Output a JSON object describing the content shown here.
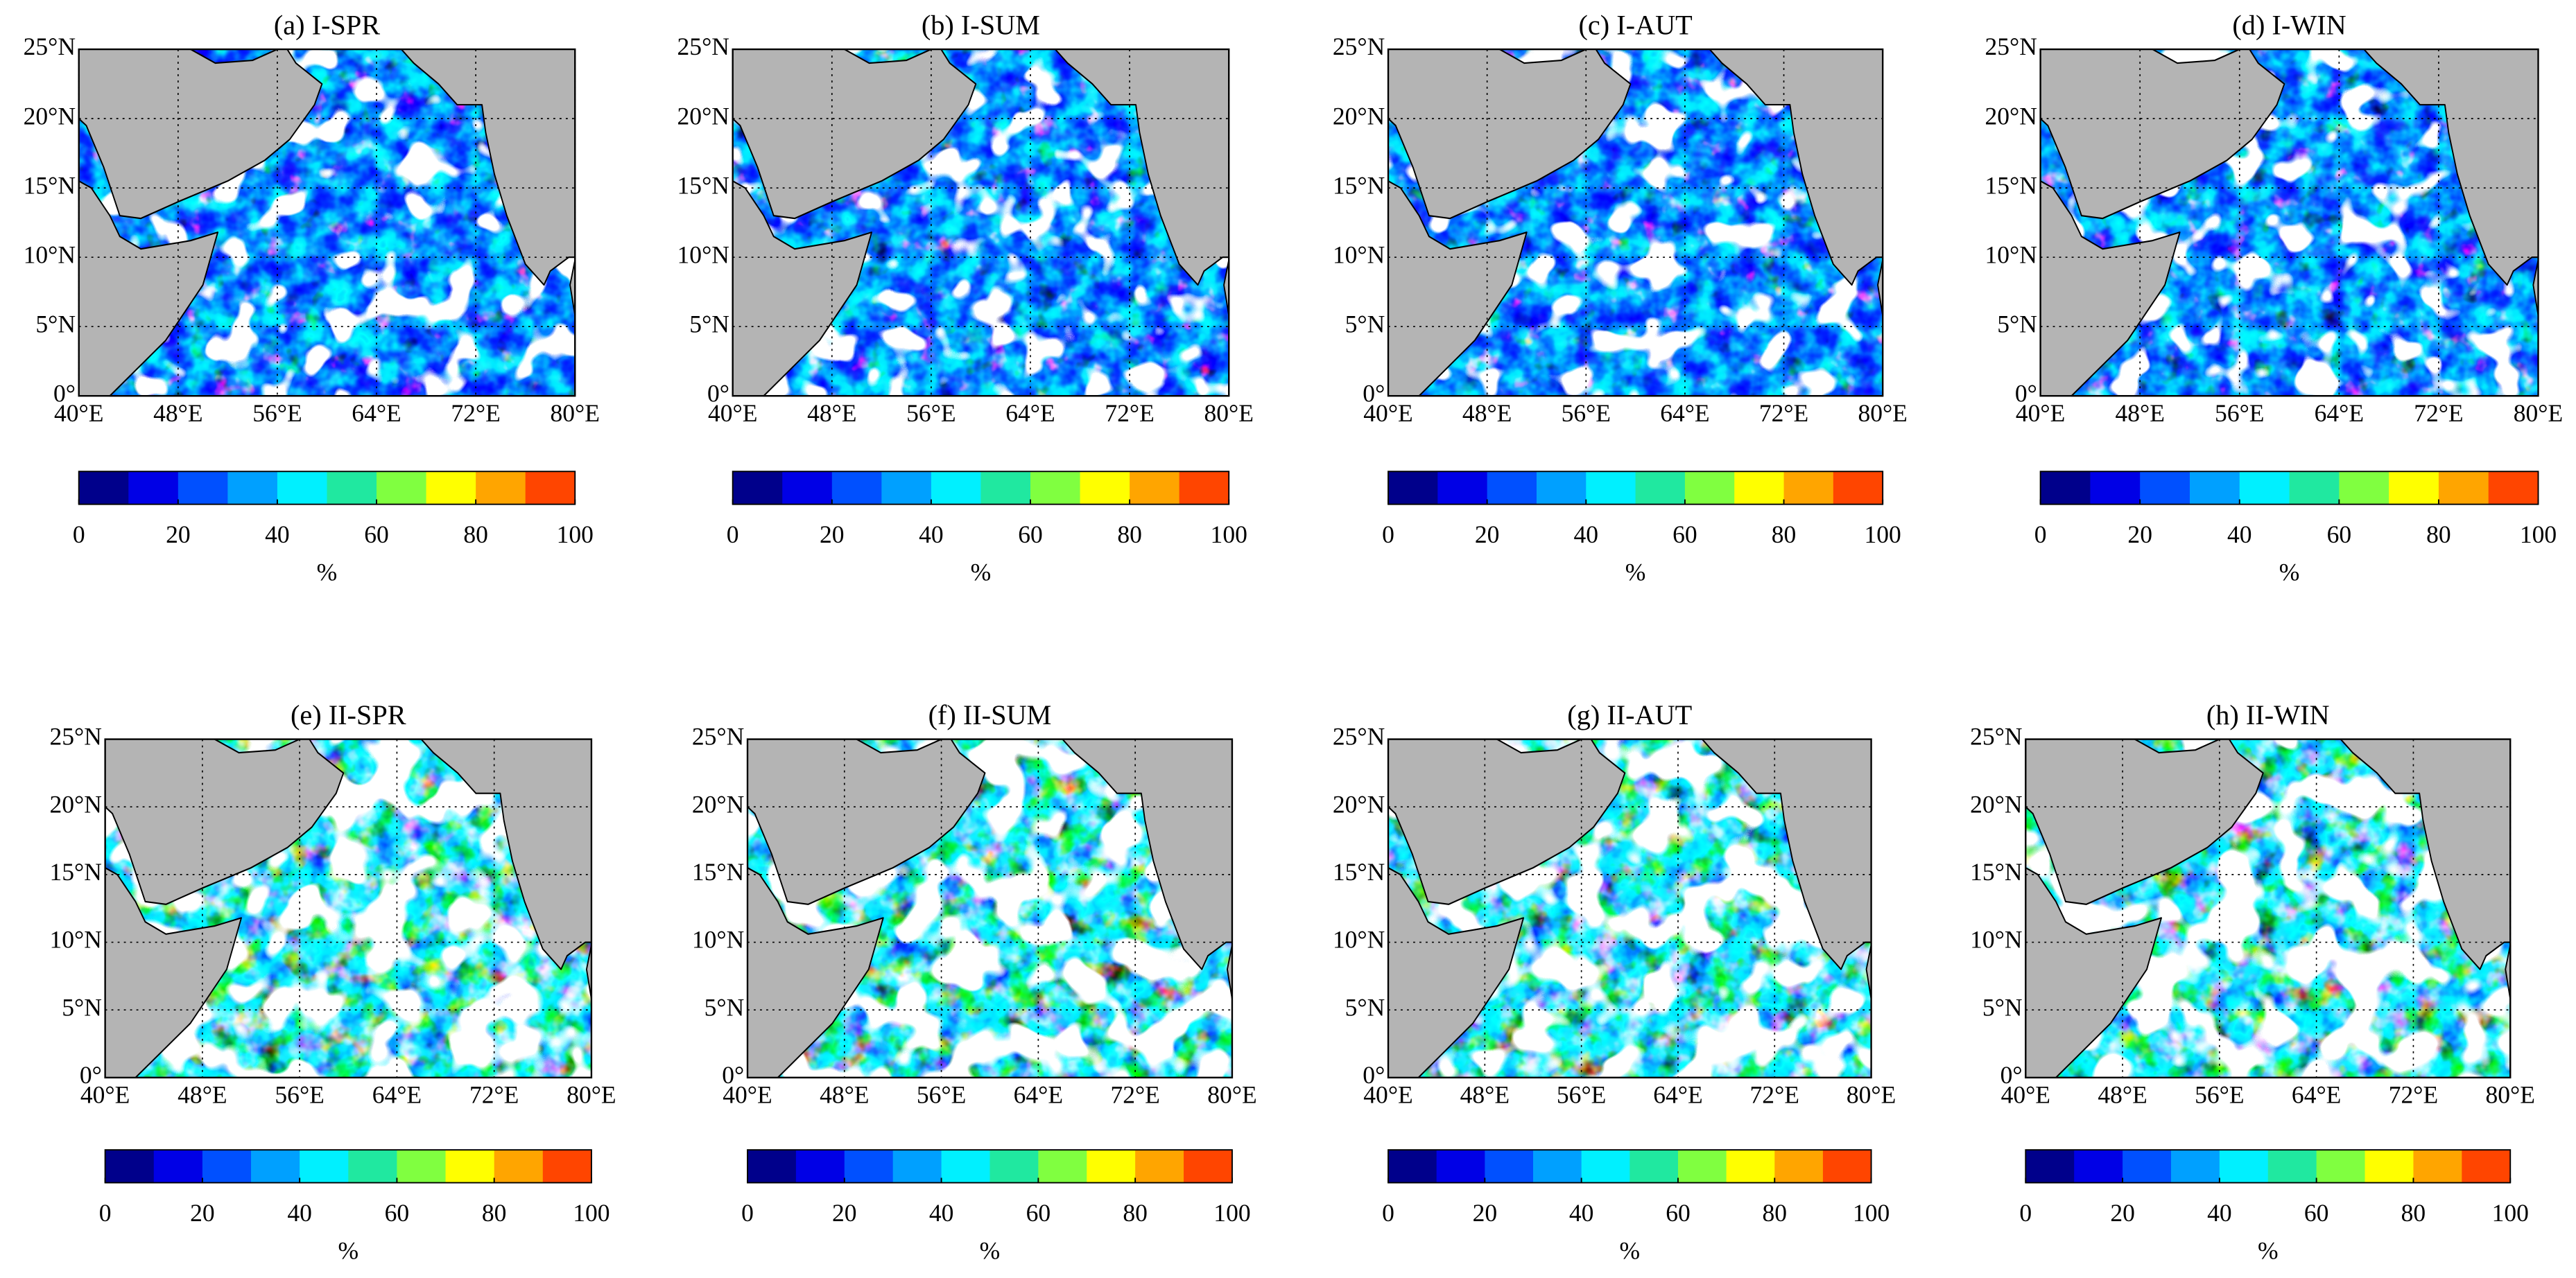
{
  "chart_data": [
    {
      "type": "map",
      "title": "(a) I-SPR",
      "xlim": [
        40,
        80
      ],
      "ylim": [
        0,
        25
      ],
      "xticks": [
        {
          "value": 40,
          "label": "40°E"
        },
        {
          "value": 48,
          "label": "48°E"
        },
        {
          "value": 56,
          "label": "56°E"
        },
        {
          "value": 64,
          "label": "64°E"
        },
        {
          "value": 72,
          "label": "72°E"
        },
        {
          "value": 80,
          "label": "80°E"
        }
      ],
      "yticks": [
        {
          "value": 0,
          "label": "0°"
        },
        {
          "value": 5,
          "label": "5°N"
        },
        {
          "value": 10,
          "label": "10°N"
        },
        {
          "value": 15,
          "label": "15°N"
        },
        {
          "value": 20,
          "label": "20°N"
        },
        {
          "value": 25,
          "label": "25°N"
        }
      ],
      "grid": true,
      "colorbar": {
        "lim": [
          0,
          100
        ],
        "ticks": [
          0,
          20,
          40,
          60,
          80,
          100
        ],
        "colors": [
          "#00008b",
          "#0000e6",
          "#0050ff",
          "#00a0ff",
          "#00f0ff",
          "#20e8a0",
          "#80ff40",
          "#ffff00",
          "#ffa500",
          "#ff4500"
        ],
        "label": "%"
      }
    },
    {
      "type": "map",
      "title": "(b) I-SUM",
      "xlim": [
        40,
        80
      ],
      "ylim": [
        0,
        25
      ],
      "xticks": [
        {
          "value": 40,
          "label": "40°E"
        },
        {
          "value": 48,
          "label": "48°E"
        },
        {
          "value": 56,
          "label": "56°E"
        },
        {
          "value": 64,
          "label": "64°E"
        },
        {
          "value": 72,
          "label": "72°E"
        },
        {
          "value": 80,
          "label": "80°E"
        }
      ],
      "yticks": [
        {
          "value": 0,
          "label": "0°"
        },
        {
          "value": 5,
          "label": "5°N"
        },
        {
          "value": 10,
          "label": "10°N"
        },
        {
          "value": 15,
          "label": "15°N"
        },
        {
          "value": 20,
          "label": "20°N"
        },
        {
          "value": 25,
          "label": "25°N"
        }
      ],
      "grid": true,
      "colorbar": {
        "lim": [
          0,
          100
        ],
        "ticks": [
          0,
          20,
          40,
          60,
          80,
          100
        ],
        "colors": [
          "#00008b",
          "#0000e6",
          "#0050ff",
          "#00a0ff",
          "#00f0ff",
          "#20e8a0",
          "#80ff40",
          "#ffff00",
          "#ffa500",
          "#ff4500"
        ],
        "label": "%"
      }
    },
    {
      "type": "map",
      "title": "(c) I-AUT",
      "xlim": [
        40,
        80
      ],
      "ylim": [
        0,
        25
      ],
      "xticks": [
        {
          "value": 40,
          "label": "40°E"
        },
        {
          "value": 48,
          "label": "48°E"
        },
        {
          "value": 56,
          "label": "56°E"
        },
        {
          "value": 64,
          "label": "64°E"
        },
        {
          "value": 72,
          "label": "72°E"
        },
        {
          "value": 80,
          "label": "80°E"
        }
      ],
      "yticks": [
        {
          "value": 0,
          "label": "0°"
        },
        {
          "value": 5,
          "label": "5°N"
        },
        {
          "value": 10,
          "label": "10°N"
        },
        {
          "value": 15,
          "label": "15°N"
        },
        {
          "value": 20,
          "label": "20°N"
        },
        {
          "value": 25,
          "label": "25°N"
        }
      ],
      "grid": true,
      "colorbar": {
        "lim": [
          0,
          100
        ],
        "ticks": [
          0,
          20,
          40,
          60,
          80,
          100
        ],
        "colors": [
          "#00008b",
          "#0000e6",
          "#0050ff",
          "#00a0ff",
          "#00f0ff",
          "#20e8a0",
          "#80ff40",
          "#ffff00",
          "#ffa500",
          "#ff4500"
        ],
        "label": "%"
      }
    },
    {
      "type": "map",
      "title": "(d) I-WIN",
      "xlim": [
        40,
        80
      ],
      "ylim": [
        0,
        25
      ],
      "xticks": [
        {
          "value": 40,
          "label": "40°E"
        },
        {
          "value": 48,
          "label": "48°E"
        },
        {
          "value": 56,
          "label": "56°E"
        },
        {
          "value": 64,
          "label": "64°E"
        },
        {
          "value": 72,
          "label": "72°E"
        },
        {
          "value": 80,
          "label": "80°E"
        }
      ],
      "yticks": [
        {
          "value": 0,
          "label": "0°"
        },
        {
          "value": 5,
          "label": "5°N"
        },
        {
          "value": 10,
          "label": "10°N"
        },
        {
          "value": 15,
          "label": "15°N"
        },
        {
          "value": 20,
          "label": "20°N"
        },
        {
          "value": 25,
          "label": "25°N"
        }
      ],
      "grid": true,
      "colorbar": {
        "lim": [
          0,
          100
        ],
        "ticks": [
          0,
          20,
          40,
          60,
          80,
          100
        ],
        "colors": [
          "#00008b",
          "#0000e6",
          "#0050ff",
          "#00a0ff",
          "#00f0ff",
          "#20e8a0",
          "#80ff40",
          "#ffff00",
          "#ffa500",
          "#ff4500"
        ],
        "label": "%"
      }
    },
    {
      "type": "map",
      "title": "(e) II-SPR",
      "xlim": [
        40,
        80
      ],
      "ylim": [
        0,
        25
      ],
      "xticks": [
        {
          "value": 40,
          "label": "40°E"
        },
        {
          "value": 48,
          "label": "48°E"
        },
        {
          "value": 56,
          "label": "56°E"
        },
        {
          "value": 64,
          "label": "64°E"
        },
        {
          "value": 72,
          "label": "72°E"
        },
        {
          "value": 80,
          "label": "80°E"
        }
      ],
      "yticks": [
        {
          "value": 0,
          "label": "0°"
        },
        {
          "value": 5,
          "label": "5°N"
        },
        {
          "value": 10,
          "label": "10°N"
        },
        {
          "value": 15,
          "label": "15°N"
        },
        {
          "value": 20,
          "label": "20°N"
        },
        {
          "value": 25,
          "label": "25°N"
        }
      ],
      "grid": true,
      "colorbar": {
        "lim": [
          0,
          100
        ],
        "ticks": [
          0,
          20,
          40,
          60,
          80,
          100
        ],
        "colors": [
          "#00008b",
          "#0000e6",
          "#0050ff",
          "#00a0ff",
          "#00f0ff",
          "#20e8a0",
          "#80ff40",
          "#ffff00",
          "#ffa500",
          "#ff4500"
        ],
        "label": "%"
      }
    },
    {
      "type": "map",
      "title": "(f) II-SUM",
      "xlim": [
        40,
        80
      ],
      "ylim": [
        0,
        25
      ],
      "xticks": [
        {
          "value": 40,
          "label": "40°E"
        },
        {
          "value": 48,
          "label": "48°E"
        },
        {
          "value": 56,
          "label": "56°E"
        },
        {
          "value": 64,
          "label": "64°E"
        },
        {
          "value": 72,
          "label": "72°E"
        },
        {
          "value": 80,
          "label": "80°E"
        }
      ],
      "yticks": [
        {
          "value": 0,
          "label": "0°"
        },
        {
          "value": 5,
          "label": "5°N"
        },
        {
          "value": 10,
          "label": "10°N"
        },
        {
          "value": 15,
          "label": "15°N"
        },
        {
          "value": 20,
          "label": "20°N"
        },
        {
          "value": 25,
          "label": "25°N"
        }
      ],
      "grid": true,
      "colorbar": {
        "lim": [
          0,
          100
        ],
        "ticks": [
          0,
          20,
          40,
          60,
          80,
          100
        ],
        "colors": [
          "#00008b",
          "#0000e6",
          "#0050ff",
          "#00a0ff",
          "#00f0ff",
          "#20e8a0",
          "#80ff40",
          "#ffff00",
          "#ffa500",
          "#ff4500"
        ],
        "label": "%"
      }
    },
    {
      "type": "map",
      "title": "(g) II-AUT",
      "xlim": [
        40,
        80
      ],
      "ylim": [
        0,
        25
      ],
      "xticks": [
        {
          "value": 40,
          "label": "40°E"
        },
        {
          "value": 48,
          "label": "48°E"
        },
        {
          "value": 56,
          "label": "56°E"
        },
        {
          "value": 64,
          "label": "64°E"
        },
        {
          "value": 72,
          "label": "72°E"
        },
        {
          "value": 80,
          "label": "80°E"
        }
      ],
      "yticks": [
        {
          "value": 0,
          "label": "0°"
        },
        {
          "value": 5,
          "label": "5°N"
        },
        {
          "value": 10,
          "label": "10°N"
        },
        {
          "value": 15,
          "label": "15°N"
        },
        {
          "value": 20,
          "label": "20°N"
        },
        {
          "value": 25,
          "label": "25°N"
        }
      ],
      "grid": true,
      "colorbar": {
        "lim": [
          0,
          100
        ],
        "ticks": [
          0,
          20,
          40,
          60,
          80,
          100
        ],
        "colors": [
          "#00008b",
          "#0000e6",
          "#0050ff",
          "#00a0ff",
          "#00f0ff",
          "#20e8a0",
          "#80ff40",
          "#ffff00",
          "#ffa500",
          "#ff4500"
        ],
        "label": "%"
      }
    },
    {
      "type": "map",
      "title": "(h) II-WIN",
      "xlim": [
        40,
        80
      ],
      "ylim": [
        0,
        25
      ],
      "xticks": [
        {
          "value": 40,
          "label": "40°E"
        },
        {
          "value": 48,
          "label": "48°E"
        },
        {
          "value": 56,
          "label": "56°E"
        },
        {
          "value": 64,
          "label": "64°E"
        },
        {
          "value": 72,
          "label": "72°E"
        },
        {
          "value": 80,
          "label": "80°E"
        }
      ],
      "yticks": [
        {
          "value": 0,
          "label": "0°"
        },
        {
          "value": 5,
          "label": "5°N"
        },
        {
          "value": 10,
          "label": "10°N"
        },
        {
          "value": 15,
          "label": "15°N"
        },
        {
          "value": 20,
          "label": "20°N"
        },
        {
          "value": 25,
          "label": "25°N"
        }
      ],
      "grid": true,
      "colorbar": {
        "lim": [
          0,
          100
        ],
        "ticks": [
          0,
          20,
          40,
          60,
          80,
          100
        ],
        "colors": [
          "#00008b",
          "#0000e6",
          "#0050ff",
          "#00a0ff",
          "#00f0ff",
          "#20e8a0",
          "#80ff40",
          "#ffff00",
          "#ffa500",
          "#ff4500"
        ],
        "label": "%"
      }
    }
  ]
}
